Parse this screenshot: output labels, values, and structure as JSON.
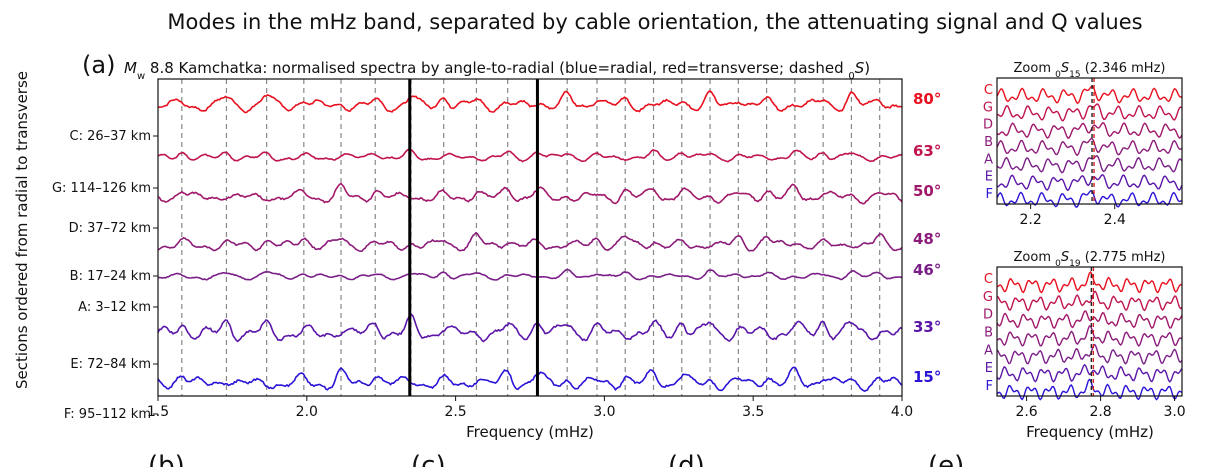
{
  "figure_title": "Modes in the mHz band, separated by cable orientation, the attenuating signal and Q values",
  "panel_letter": "(a)",
  "panel_title": "Mw 8.8 Kamchatka: normalised spectra by angle-to-radial (blue=radial, red=transverse; dashed 0S)",
  "bottom_letters": [
    "(b)",
    "(c)",
    "(d)",
    "(e)"
  ],
  "colors": {
    "C": "#e8101e",
    "G": "#c0144e",
    "D": "#a0186a",
    "B": "#8c1c7a",
    "A": "#7a1f88",
    "E": "#5a16a8",
    "F": "#2a14d6",
    "dashed": "#888888",
    "thick": "#000000",
    "zoom_line": "#d42020"
  },
  "chart_data": [
    {
      "type": "line",
      "title": "Mw 8.8 Kamchatka: normalised spectra by angle-to-radial (blue=radial, red=transverse; dashed 0S)",
      "xlabel": "Frequency (mHz)",
      "ylabel": "Sections ordered from radial to transverse",
      "xlim": [
        1.5,
        4.0
      ],
      "xticks": [
        "1.5",
        "2.0",
        "2.5",
        "3.0",
        "3.5",
        "4.0"
      ],
      "series": [
        {
          "name": "C: 26–37 km",
          "key": "C",
          "angle": "80°"
        },
        {
          "name": "G: 114–126 km",
          "key": "G",
          "angle": "63°"
        },
        {
          "name": "D: 37–72 km",
          "key": "D",
          "angle": "50°"
        },
        {
          "name": "B: 17–24 km",
          "key": "B",
          "angle": "48°"
        },
        {
          "name": "A: 3–12 km",
          "key": "A",
          "angle": "46°"
        },
        {
          "name": "E: 72–84 km",
          "key": "E",
          "angle": "33°"
        },
        {
          "name": "F: 95–112 km",
          "key": "F",
          "angle": "15°"
        }
      ],
      "dashed_x": [
        1.58,
        1.73,
        1.865,
        1.99,
        2.115,
        2.23,
        2.35,
        2.46,
        2.57,
        2.675,
        2.775,
        2.875,
        2.975,
        3.07,
        3.165,
        3.26,
        3.355,
        3.45,
        3.545,
        3.64,
        3.735,
        3.83,
        3.925
      ],
      "thick_x": [
        2.346,
        2.775
      ]
    },
    {
      "type": "line",
      "title": "Zoom 0S15 (2.346 mHz)",
      "xlim": [
        2.12,
        2.56
      ],
      "xticks": [
        "2.2",
        "2.4"
      ],
      "labels": [
        "C",
        "G",
        "D",
        "B",
        "A",
        "E",
        "F"
      ],
      "marker_x": 2.346
    },
    {
      "type": "line",
      "title": "Zoom 0S19 (2.775 mHz)",
      "xlabel": "Frequency (mHz)",
      "xlim": [
        2.52,
        3.02
      ],
      "xticks": [
        "2.6",
        "2.8",
        "3.0"
      ],
      "labels": [
        "C",
        "G",
        "D",
        "B",
        "A",
        "E",
        "F"
      ],
      "marker_x": 2.775
    }
  ]
}
